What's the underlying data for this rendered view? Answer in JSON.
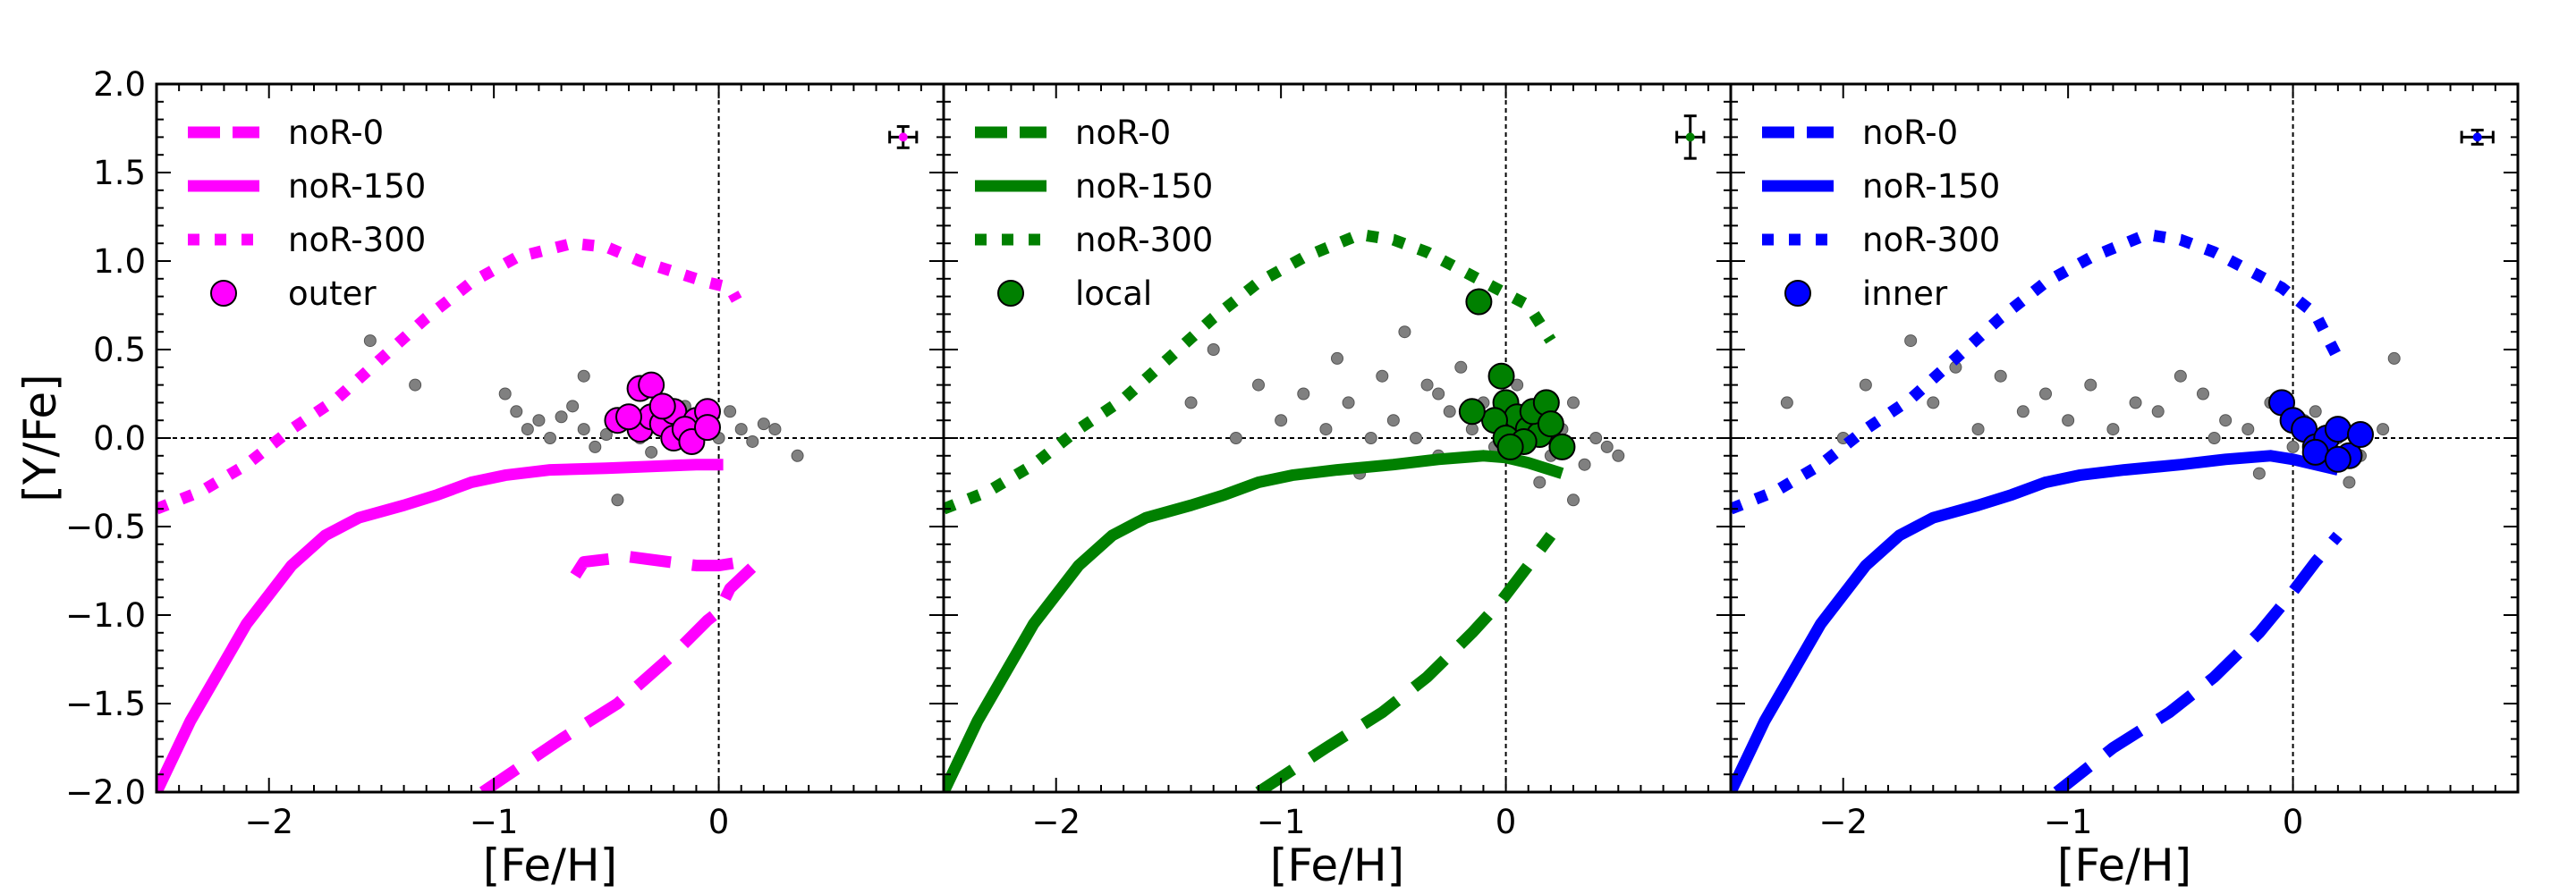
{
  "chart_data": [
    {
      "type": "line",
      "color": "#ff00ff",
      "xlabel": "[Fe/H]",
      "ylabel": "[Y/Fe]",
      "xlim": [
        -2.5,
        1.0
      ],
      "ylim": [
        -2.0,
        2.0
      ],
      "xticks": [
        "−2",
        "−1",
        "0"
      ],
      "yticks": [
        "−2.0",
        "−1.5",
        "−1.0",
        "−0.5",
        "0.0",
        "0.5",
        "1.0",
        "1.5",
        "2.0"
      ],
      "legend_position": "top-left",
      "grid": false,
      "series": [
        {
          "name": "noR-0",
          "style": "dashed",
          "x": [
            -1.05,
            -0.7,
            -0.45,
            -0.2,
            -0.05,
            0.0,
            0.05,
            0.15,
            0.1,
            0.0,
            -0.1,
            -0.4,
            -0.6,
            -0.65
          ],
          "y": [
            -2.0,
            -1.7,
            -1.5,
            -1.22,
            -1.03,
            -0.98,
            -0.85,
            -0.73,
            -0.7,
            -0.72,
            -0.72,
            -0.67,
            -0.7,
            -0.8
          ]
        },
        {
          "name": "noR-150",
          "style": "solid",
          "x": [
            -2.5,
            -2.35,
            -2.1,
            -1.9,
            -1.75,
            -1.6,
            -1.4,
            -1.25,
            -1.1,
            -0.95,
            -0.75,
            -0.5,
            -0.3,
            -0.1,
            0.0,
            0.02
          ],
          "y": [
            -2.0,
            -1.6,
            -1.05,
            -0.72,
            -0.55,
            -0.45,
            -0.38,
            -0.32,
            -0.25,
            -0.21,
            -0.18,
            -0.17,
            -0.16,
            -0.15,
            -0.15,
            -0.15
          ]
        },
        {
          "name": "noR-300",
          "style": "dotted",
          "x": [
            -2.5,
            -2.3,
            -2.1,
            -1.9,
            -1.7,
            -1.5,
            -1.3,
            -1.1,
            -0.9,
            -0.65,
            -0.5,
            -0.35,
            -0.2,
            -0.05,
            0.05,
            0.08
          ],
          "y": [
            -0.4,
            -0.3,
            -0.15,
            0.05,
            0.22,
            0.45,
            0.68,
            0.88,
            1.02,
            1.1,
            1.08,
            1.0,
            0.94,
            0.88,
            0.85,
            0.78
          ]
        },
        {
          "name": "outer",
          "style": "markers",
          "x": [
            -0.45,
            -0.35,
            -0.3,
            -0.25,
            -0.2,
            -0.15,
            -0.1,
            -0.05,
            -0.35,
            -0.3,
            -0.2,
            -0.15,
            -0.12,
            -0.4,
            -0.05,
            -0.25
          ],
          "y": [
            0.1,
            0.05,
            0.12,
            0.08,
            0.15,
            0.02,
            0.1,
            0.15,
            0.28,
            0.3,
            0.0,
            0.05,
            -0.02,
            0.12,
            0.06,
            0.18
          ]
        }
      ],
      "comparison_points": {
        "x": [
          -0.95,
          -0.9,
          -0.85,
          -0.8,
          -0.75,
          -0.7,
          -0.65,
          -0.6,
          -0.55,
          -0.5,
          -0.45,
          -0.4,
          -0.35,
          -0.3,
          -0.25,
          -0.2,
          -0.15,
          -0.1,
          -0.05,
          0.0,
          0.05,
          0.1,
          0.15,
          0.2,
          0.25,
          0.35,
          -1.35,
          -1.55,
          -0.6,
          -0.45
        ],
        "y": [
          0.25,
          0.15,
          0.05,
          0.1,
          0.0,
          0.12,
          0.18,
          0.05,
          -0.05,
          0.02,
          0.1,
          0.15,
          0.0,
          -0.08,
          0.2,
          0.12,
          0.18,
          0.05,
          0.1,
          0.0,
          0.15,
          0.05,
          -0.02,
          0.08,
          0.05,
          -0.1,
          0.3,
          0.55,
          0.35,
          -0.35
        ]
      },
      "error_bar": {
        "x": 0.82,
        "y": 1.7,
        "xerr": 0.06,
        "yerr": 0.06
      }
    },
    {
      "type": "line",
      "color": "#008000",
      "xlabel": "[Fe/H]",
      "ylabel": "",
      "xlim": [
        -2.5,
        1.0
      ],
      "ylim": [
        -2.0,
        2.0
      ],
      "xticks": [
        "−2",
        "−1",
        "0"
      ],
      "legend_position": "top-left",
      "grid": false,
      "series": [
        {
          "name": "noR-0",
          "style": "dashed",
          "x": [
            -1.1,
            -0.8,
            -0.55,
            -0.35,
            -0.15,
            -0.02,
            0.1,
            0.2
          ],
          "y": [
            -2.0,
            -1.75,
            -1.55,
            -1.35,
            -1.1,
            -0.92,
            -0.72,
            -0.55
          ]
        },
        {
          "name": "noR-150",
          "style": "solid",
          "x": [
            -2.5,
            -2.35,
            -2.1,
            -1.9,
            -1.75,
            -1.6,
            -1.4,
            -1.25,
            -1.1,
            -0.95,
            -0.75,
            -0.5,
            -0.3,
            -0.1,
            0.0,
            0.1,
            0.25
          ],
          "y": [
            -2.0,
            -1.6,
            -1.05,
            -0.72,
            -0.55,
            -0.45,
            -0.38,
            -0.32,
            -0.25,
            -0.21,
            -0.18,
            -0.15,
            -0.12,
            -0.1,
            -0.11,
            -0.14,
            -0.2
          ]
        },
        {
          "name": "noR-300",
          "style": "dotted",
          "x": [
            -2.5,
            -2.3,
            -2.1,
            -1.9,
            -1.7,
            -1.5,
            -1.3,
            -1.1,
            -0.9,
            -0.65,
            -0.5,
            -0.35,
            -0.2,
            -0.05,
            0.1,
            0.2
          ],
          "y": [
            -0.4,
            -0.3,
            -0.15,
            0.05,
            0.22,
            0.45,
            0.68,
            0.88,
            1.02,
            1.15,
            1.12,
            1.05,
            0.95,
            0.85,
            0.75,
            0.55
          ]
        },
        {
          "name": "local",
          "style": "markers",
          "x": [
            -0.12,
            -0.02,
            0.0,
            0.05,
            0.1,
            0.15,
            -0.05,
            0.0,
            0.08,
            0.12,
            0.18,
            0.25,
            -0.15,
            0.02,
            0.2
          ],
          "y": [
            0.77,
            0.35,
            0.2,
            0.12,
            0.05,
            0.02,
            0.1,
            0.0,
            -0.02,
            0.15,
            0.2,
            -0.05,
            0.15,
            -0.05,
            0.08
          ]
        }
      ],
      "comparison_points": {
        "x": [
          -1.2,
          -1.1,
          -1.0,
          -0.9,
          -0.8,
          -0.75,
          -0.7,
          -0.6,
          -0.55,
          -0.5,
          -0.45,
          -0.4,
          -0.35,
          -0.3,
          -0.25,
          -0.2,
          -0.15,
          -0.1,
          -0.05,
          0.0,
          0.05,
          0.1,
          0.15,
          0.2,
          0.25,
          0.3,
          0.35,
          0.4,
          0.45,
          0.5,
          -1.4,
          -1.3,
          -0.65,
          -0.3,
          0.15,
          0.3
        ],
        "y": [
          0.0,
          0.3,
          0.1,
          0.25,
          0.05,
          0.45,
          0.2,
          0.0,
          0.35,
          0.1,
          0.6,
          0.0,
          0.3,
          -0.1,
          0.15,
          0.4,
          0.05,
          0.2,
          -0.05,
          0.1,
          0.3,
          0.0,
          0.15,
          -0.1,
          0.05,
          0.2,
          -0.15,
          0.0,
          -0.05,
          -0.1,
          0.2,
          0.5,
          -0.2,
          0.25,
          -0.25,
          -0.35
        ]
      },
      "error_bar": {
        "x": 0.82,
        "y": 1.7,
        "xerr": 0.06,
        "yerr": 0.12
      }
    },
    {
      "type": "line",
      "color": "#0000ff",
      "xlabel": "[Fe/H]",
      "ylabel": "",
      "xlim": [
        -2.5,
        1.0
      ],
      "ylim": [
        -2.0,
        2.0
      ],
      "xticks": [
        "−2",
        "−1",
        "0"
      ],
      "legend_position": "top-left",
      "grid": false,
      "series": [
        {
          "name": "noR-0",
          "style": "dashed",
          "x": [
            -1.05,
            -0.8,
            -0.55,
            -0.35,
            -0.15,
            -0.02,
            0.1,
            0.2
          ],
          "y": [
            -2.0,
            -1.75,
            -1.55,
            -1.35,
            -1.1,
            -0.9,
            -0.7,
            -0.55
          ]
        },
        {
          "name": "noR-150",
          "style": "solid",
          "x": [
            -2.5,
            -2.35,
            -2.1,
            -1.9,
            -1.75,
            -1.6,
            -1.4,
            -1.25,
            -1.1,
            -0.95,
            -0.75,
            -0.5,
            -0.3,
            -0.1,
            0.0,
            0.1,
            0.2
          ],
          "y": [
            -2.0,
            -1.6,
            -1.05,
            -0.72,
            -0.55,
            -0.45,
            -0.38,
            -0.32,
            -0.25,
            -0.21,
            -0.18,
            -0.15,
            -0.12,
            -0.1,
            -0.12,
            -0.15,
            -0.18
          ]
        },
        {
          "name": "noR-300",
          "style": "dotted",
          "x": [
            -2.5,
            -2.3,
            -2.1,
            -1.9,
            -1.7,
            -1.5,
            -1.3,
            -1.1,
            -0.9,
            -0.65,
            -0.5,
            -0.35,
            -0.2,
            -0.05,
            0.1,
            0.2
          ],
          "y": [
            -0.4,
            -0.3,
            -0.15,
            0.05,
            0.22,
            0.45,
            0.68,
            0.88,
            1.02,
            1.15,
            1.12,
            1.05,
            0.95,
            0.85,
            0.7,
            0.45
          ]
        },
        {
          "name": "inner",
          "style": "markers",
          "x": [
            -0.05,
            0.0,
            0.05,
            0.1,
            0.15,
            0.2,
            0.25,
            0.3,
            0.1,
            0.2
          ],
          "y": [
            0.2,
            0.1,
            0.05,
            -0.05,
            0.0,
            0.05,
            -0.1,
            0.02,
            -0.08,
            -0.12
          ]
        }
      ],
      "comparison_points": {
        "x": [
          -2.0,
          -1.9,
          -1.7,
          -1.6,
          -1.5,
          -1.4,
          -1.3,
          -1.2,
          -1.1,
          -1.0,
          -0.9,
          -0.8,
          -0.7,
          -0.6,
          -0.5,
          -0.4,
          -0.3,
          -0.2,
          -0.1,
          0.0,
          0.1,
          0.2,
          0.3,
          0.4,
          0.45,
          -0.35,
          -0.15,
          0.05,
          0.25,
          -2.25
        ],
        "y": [
          0.0,
          0.3,
          0.55,
          0.2,
          0.4,
          0.05,
          0.35,
          0.15,
          0.25,
          0.1,
          0.3,
          0.05,
          0.2,
          0.15,
          0.35,
          0.25,
          0.1,
          0.05,
          0.2,
          -0.05,
          0.15,
          0.0,
          -0.1,
          0.05,
          0.45,
          0.0,
          -0.2,
          0.1,
          -0.25,
          0.2
        ]
      },
      "error_bar": {
        "x": 0.82,
        "y": 1.7,
        "xerr": 0.07,
        "yerr": 0.04
      }
    }
  ]
}
